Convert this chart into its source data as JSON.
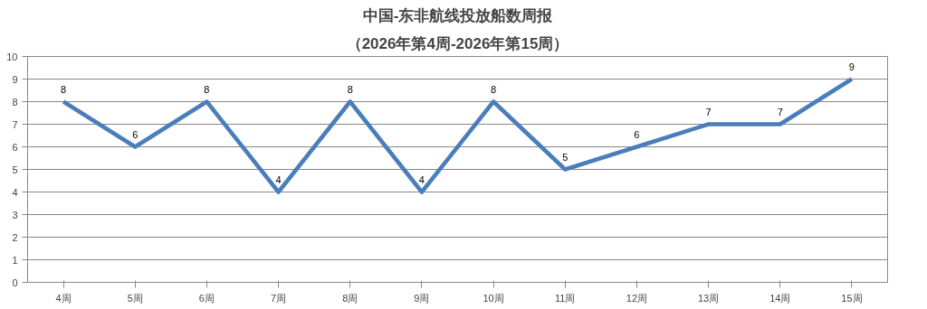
{
  "chart_data": {
    "type": "line",
    "title": "中国-东非航线投放船数周报",
    "subtitle": "（2026年第4周-2026年第15周）",
    "categories": [
      "4周",
      "5周",
      "6周",
      "7周",
      "8周",
      "9周",
      "10周",
      "11周",
      "12周",
      "13周",
      "14周",
      "15周"
    ],
    "series": [
      {
        "color": "#4a7ebb",
        "values": [
          8,
          6,
          8,
          4,
          8,
          4,
          8,
          5,
          6,
          7,
          7,
          9
        ]
      }
    ],
    "ylim": [
      0,
      10
    ],
    "yticks": [
      0,
      1,
      2,
      3,
      4,
      5,
      6,
      7,
      8,
      9,
      10
    ],
    "grid": "y",
    "data_labels": true,
    "marker": "none",
    "line_style": "solid"
  }
}
